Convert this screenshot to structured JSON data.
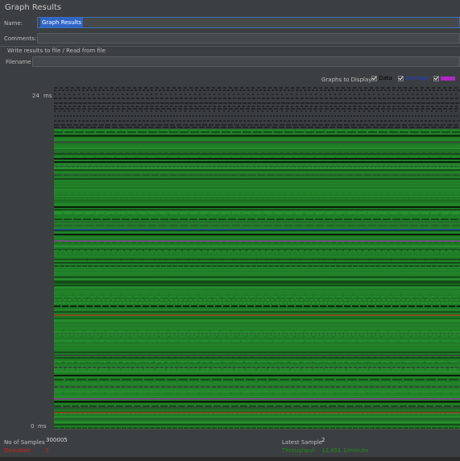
{
  "title": "Graph Results",
  "name": {
    "label": "Name:",
    "value": "Graph Results"
  },
  "comments": {
    "label": "Comments:",
    "value": ""
  },
  "file_section": {
    "title": "Write results to file / Read from file",
    "filename_label": "Filename",
    "filename_value": ""
  },
  "graphs_to_display": {
    "label": "Graphs to Display",
    "options": [
      {
        "label": "Data",
        "checked": true,
        "color": "#000000"
      },
      {
        "label": "Average",
        "checked": true,
        "color": "#1f3fd6"
      },
      {
        "label": "",
        "checked": true,
        "color": "#b026c4"
      }
    ]
  },
  "y_axis": {
    "max": "24",
    "min": "0",
    "unit": "ms"
  },
  "stats": {
    "samples_label": "No of Samples",
    "samples_value": "300005",
    "deviation_label": "Deviation",
    "deviation_value": "3",
    "latest_label": "Latest Sample",
    "latest_value": "2",
    "throughput_label": "Throughput",
    "throughput_value": "12,451.1/minute"
  },
  "colors": {
    "data": "#000000",
    "average": "#1f3fd6",
    "median": "#b026c4",
    "deviation": "#d01f1f",
    "throughput": "#1d8c1d",
    "background": "#3c3f41"
  }
}
